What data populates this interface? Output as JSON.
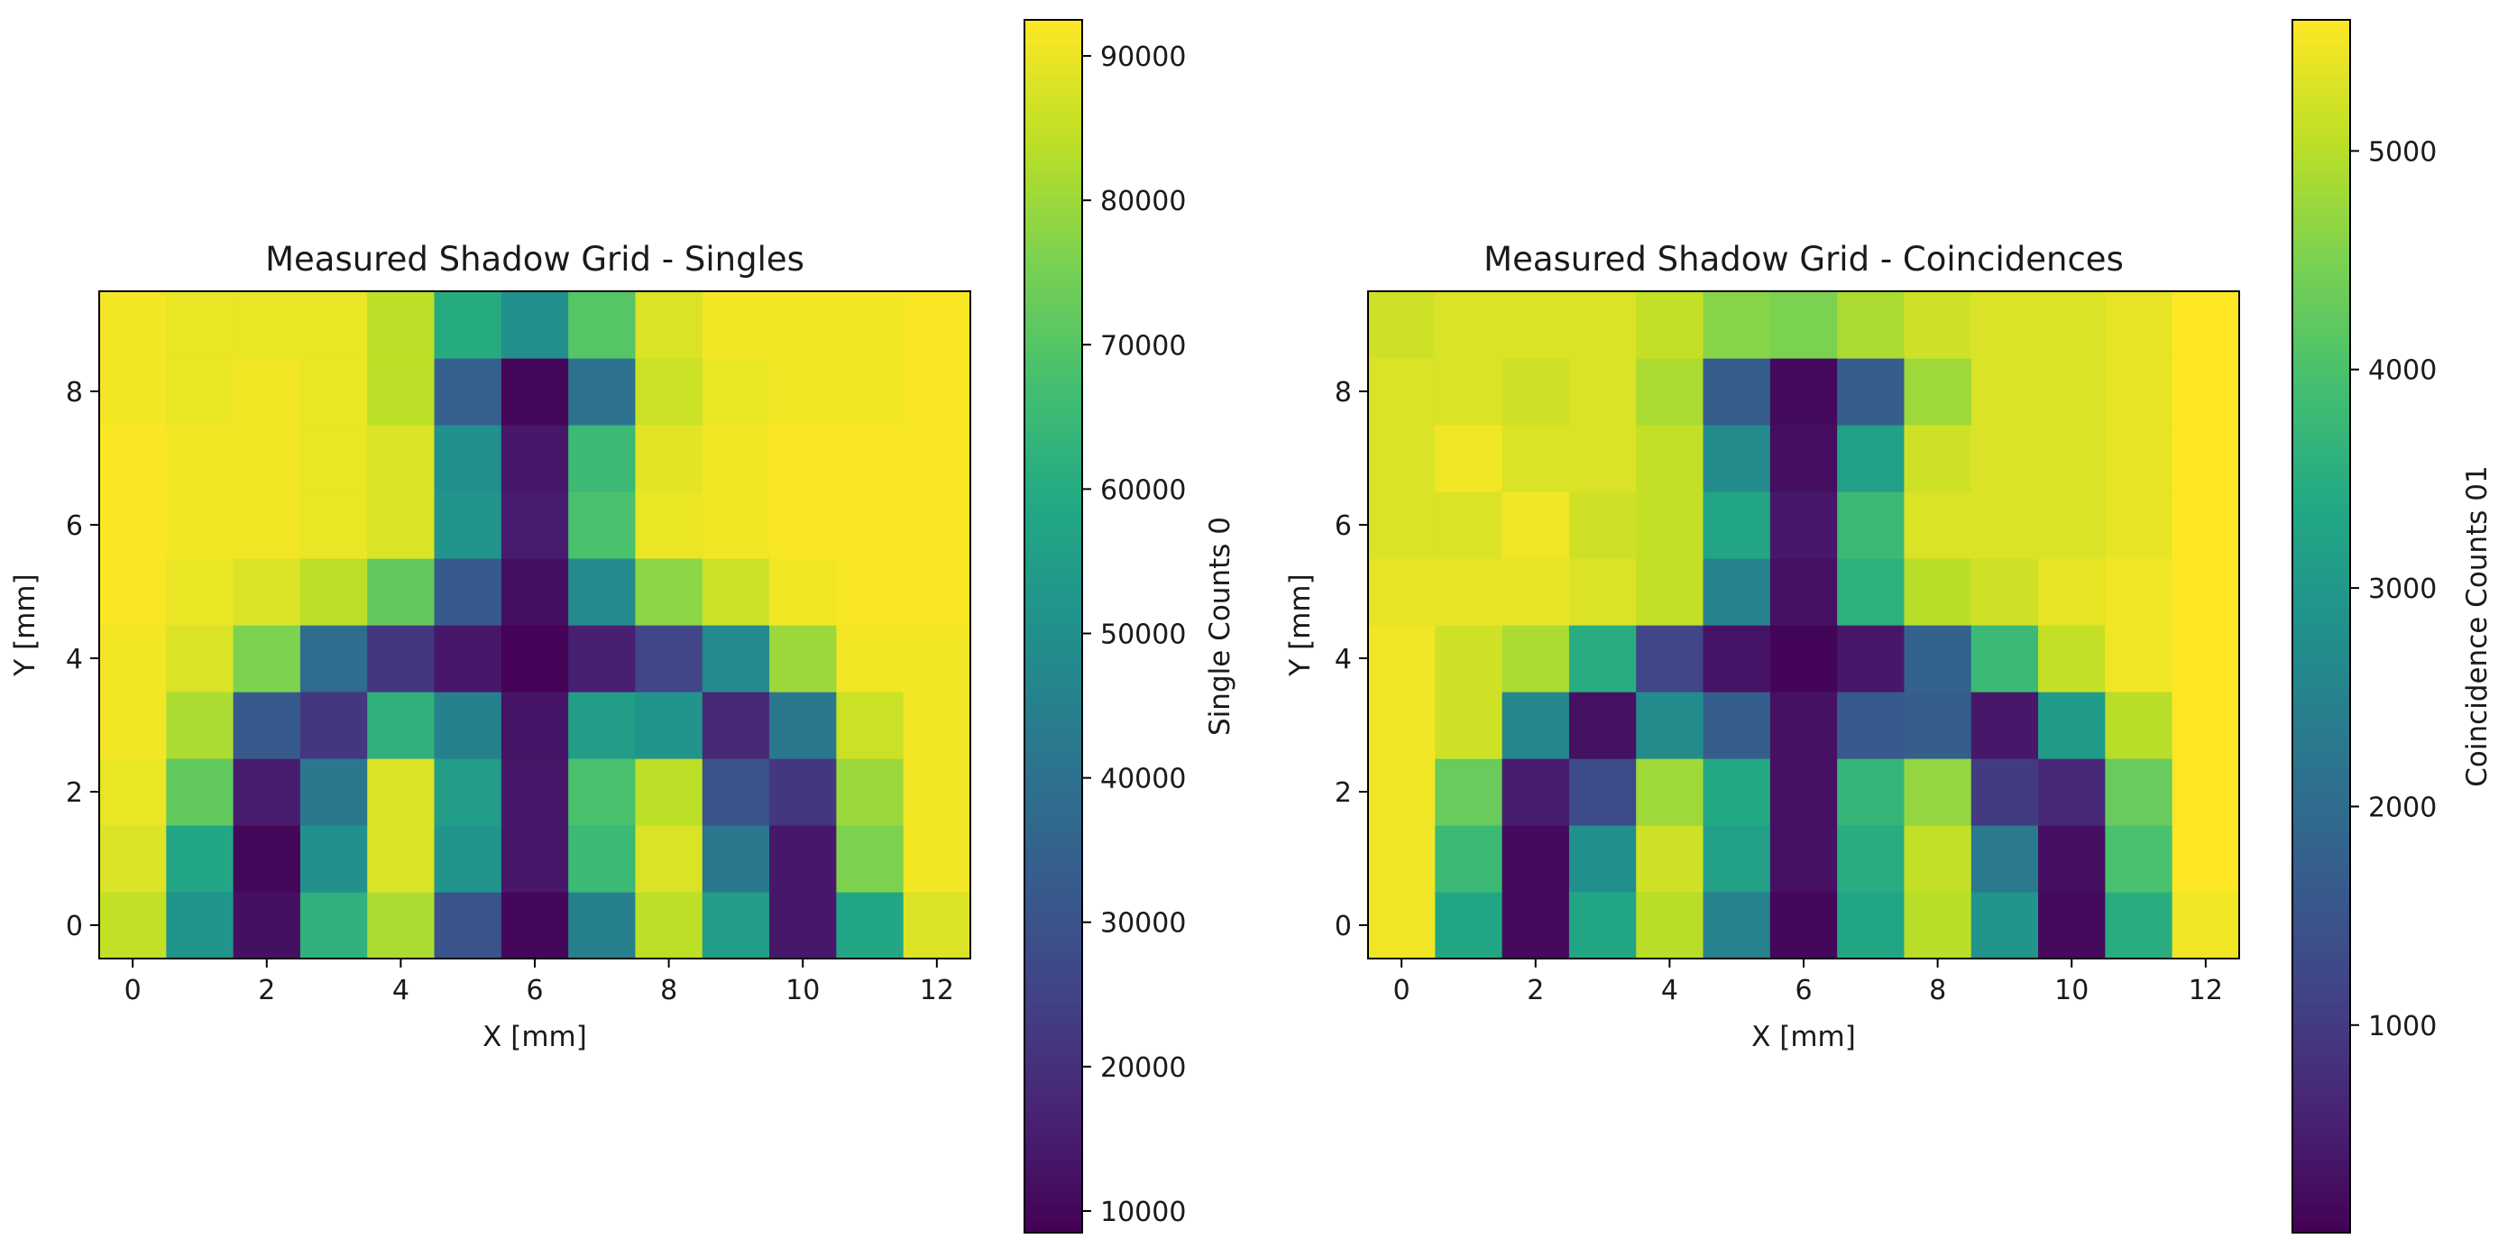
{
  "chart_data": [
    {
      "type": "heatmap",
      "title": "Measured Shadow Grid - Singles",
      "xlabel": "X [mm]",
      "ylabel": "Y [mm]",
      "x": [
        0,
        1,
        2,
        3,
        4,
        5,
        6,
        7,
        8,
        9,
        10,
        11,
        12
      ],
      "y": [
        0,
        1,
        2,
        3,
        4,
        5,
        6,
        7,
        8,
        9
      ],
      "xticks": [
        0,
        2,
        4,
        6,
        8,
        10,
        12
      ],
      "yticks": [
        0,
        2,
        4,
        6,
        8
      ],
      "xlim": [
        -0.5,
        12.5
      ],
      "ylim": [
        -0.5,
        9.5
      ],
      "colormap": "viridis",
      "colorbar": {
        "label": "Single Counts 0",
        "min": 8500,
        "max": 92500,
        "ticks": [
          10000,
          20000,
          30000,
          40000,
          50000,
          60000,
          70000,
          80000,
          90000
        ],
        "tick_labels": [
          "10000",
          "20000",
          "30000",
          "40000",
          "50000",
          "60000",
          "70000",
          "80000",
          "90000"
        ]
      },
      "values": [
        [
          85000,
          52000,
          12000,
          62000,
          82000,
          30000,
          10000,
          45000,
          84000,
          55000,
          14000,
          58000,
          88000
        ],
        [
          88000,
          58000,
          10000,
          50000,
          88000,
          52000,
          14000,
          65000,
          88000,
          42000,
          14000,
          76000,
          91000
        ],
        [
          90000,
          72000,
          15000,
          42000,
          88000,
          55000,
          14000,
          68000,
          84000,
          30000,
          22000,
          80000,
          91000
        ],
        [
          91000,
          82000,
          32000,
          22000,
          62000,
          45000,
          13000,
          55000,
          52000,
          18000,
          42000,
          86000,
          91000
        ],
        [
          91000,
          88000,
          76000,
          38000,
          22000,
          14000,
          9000,
          16000,
          26000,
          48000,
          80000,
          91000,
          91000
        ],
        [
          92000,
          90000,
          88000,
          84000,
          72000,
          32000,
          12000,
          48000,
          78000,
          86000,
          91000,
          92000,
          92000
        ],
        [
          92000,
          91000,
          91000,
          90000,
          88000,
          52000,
          15000,
          68000,
          90000,
          91000,
          92000,
          92000,
          92000
        ],
        [
          92000,
          91000,
          91000,
          90000,
          88000,
          50000,
          14000,
          65000,
          89000,
          91000,
          92000,
          92000,
          92000
        ],
        [
          91000,
          90000,
          91000,
          90000,
          84000,
          34000,
          10000,
          40000,
          86000,
          90000,
          91000,
          91000,
          92000
        ],
        [
          91000,
          90000,
          90000,
          90000,
          84000,
          60000,
          50000,
          70000,
          88000,
          91000,
          91000,
          91000,
          92000
        ]
      ]
    },
    {
      "type": "heatmap",
      "title": "Measured Shadow Grid - Coincidences",
      "xlabel": "X [mm]",
      "ylabel": "Y [mm]",
      "x": [
        0,
        1,
        2,
        3,
        4,
        5,
        6,
        7,
        8,
        9,
        10,
        11,
        12
      ],
      "y": [
        0,
        1,
        2,
        3,
        4,
        5,
        6,
        7,
        8,
        9
      ],
      "xticks": [
        0,
        2,
        4,
        6,
        8,
        10,
        12
      ],
      "yticks": [
        0,
        2,
        4,
        6,
        8
      ],
      "xlim": [
        -0.5,
        12.5
      ],
      "ylim": [
        -0.5,
        9.5
      ],
      "colormap": "viridis",
      "colorbar": {
        "label": "Coincidence Counts 01",
        "min": 50,
        "max": 5600,
        "ticks": [
          1000,
          2000,
          3000,
          4000,
          5000
        ],
        "tick_labels": [
          "1000",
          "2000",
          "3000",
          "4000",
          "5000"
        ]
      },
      "values": [
        [
          5500,
          3300,
          200,
          3300,
          5000,
          2500,
          150,
          3300,
          5000,
          2900,
          200,
          3500,
          5500
        ],
        [
          5500,
          3800,
          200,
          2800,
          5200,
          3200,
          300,
          3500,
          5100,
          2300,
          250,
          4000,
          5600
        ],
        [
          5500,
          4300,
          500,
          1300,
          4800,
          3400,
          300,
          3700,
          4700,
          1000,
          700,
          4300,
          5600
        ],
        [
          5500,
          5200,
          2600,
          300,
          2700,
          1700,
          300,
          1600,
          1700,
          400,
          3100,
          5000,
          5600
        ],
        [
          5500,
          5200,
          4900,
          3500,
          1200,
          350,
          100,
          400,
          1800,
          3800,
          5100,
          5500,
          5600
        ],
        [
          5400,
          5400,
          5400,
          5300,
          5100,
          2500,
          300,
          3600,
          5000,
          5200,
          5400,
          5500,
          5600
        ],
        [
          5300,
          5300,
          5500,
          5200,
          5100,
          3300,
          400,
          3800,
          5300,
          5300,
          5300,
          5400,
          5600
        ],
        [
          5300,
          5500,
          5300,
          5300,
          5100,
          2700,
          250,
          3200,
          5200,
          5300,
          5300,
          5400,
          5600
        ],
        [
          5300,
          5300,
          5200,
          5300,
          4900,
          1700,
          200,
          1700,
          4800,
          5300,
          5300,
          5400,
          5600
        ],
        [
          5200,
          5300,
          5300,
          5300,
          5100,
          4600,
          4500,
          4900,
          5200,
          5300,
          5300,
          5400,
          5600
        ]
      ]
    }
  ]
}
